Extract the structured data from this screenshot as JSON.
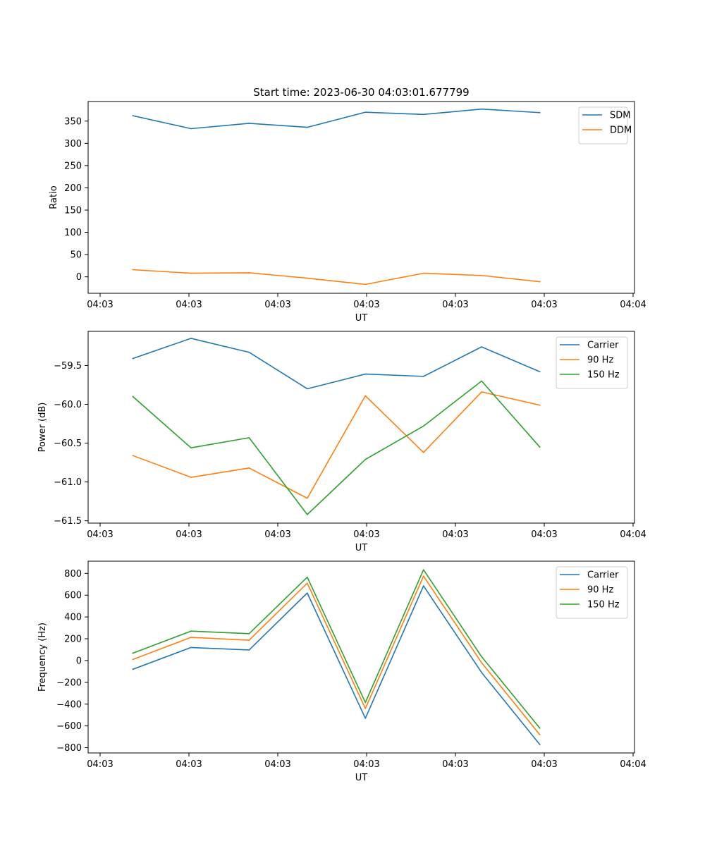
{
  "figure": {
    "title": "Start time: 2023-06-30 04:03:01.677799"
  },
  "chart_data": [
    {
      "type": "line",
      "xlabel": "UT",
      "ylabel": "Ratio",
      "x_tick_labels": [
        "04:03",
        "04:03",
        "04:03",
        "04:03",
        "04:03",
        "04:03",
        "04:04"
      ],
      "x_index": [
        0,
        1,
        2,
        3,
        4,
        5,
        6,
        7
      ],
      "xlim": [
        -0.77,
        8.63
      ],
      "ylim": [
        -37,
        394
      ],
      "y_ticks": [
        0,
        50,
        100,
        150,
        200,
        250,
        300,
        350
      ],
      "y_tick_labels": [
        "0",
        "50",
        "100",
        "150",
        "200",
        "250",
        "300",
        "350"
      ],
      "legend": {
        "placement": "top-right"
      },
      "series": [
        {
          "name": "SDM",
          "color": "#1f77b4",
          "values": [
            362,
            333,
            345,
            336,
            370,
            365,
            377,
            369
          ]
        },
        {
          "name": "DDM",
          "color": "#ff7f0e",
          "values": [
            16,
            8,
            9,
            -3,
            -17,
            8,
            3,
            -11
          ]
        }
      ]
    },
    {
      "type": "line",
      "xlabel": "UT",
      "ylabel": "Power (dB)",
      "x_tick_labels": [
        "04:03",
        "04:03",
        "04:03",
        "04:03",
        "04:03",
        "04:03",
        "04:04"
      ],
      "x_index": [
        0,
        1,
        2,
        3,
        4,
        5,
        6,
        7
      ],
      "xlim": [
        -0.77,
        8.63
      ],
      "ylim": [
        -61.53,
        -59.06
      ],
      "y_ticks": [
        -61.5,
        -61.0,
        -60.5,
        -60.0,
        -59.5
      ],
      "y_tick_labels": [
        "−61.5",
        "−61.0",
        "−60.5",
        "−60.0",
        "−59.5"
      ],
      "legend": {
        "placement": "top-right"
      },
      "series": [
        {
          "name": "Carrier",
          "color": "#1f77b4",
          "values": [
            -59.41,
            -59.15,
            -59.33,
            -59.8,
            -59.61,
            -59.64,
            -59.26,
            -59.58
          ]
        },
        {
          "name": "90 Hz",
          "color": "#ff7f0e",
          "values": [
            -60.66,
            -60.94,
            -60.82,
            -61.21,
            -59.89,
            -60.62,
            -59.84,
            -60.01
          ]
        },
        {
          "name": "150 Hz",
          "color": "#2ca02c",
          "values": [
            -59.9,
            -60.56,
            -60.43,
            -61.42,
            -60.71,
            -60.28,
            -59.7,
            -60.55
          ]
        }
      ]
    },
    {
      "type": "line",
      "xlabel": "UT",
      "ylabel": "Frequency (Hz)",
      "x_tick_labels": [
        "04:03",
        "04:03",
        "04:03",
        "04:03",
        "04:03",
        "04:03",
        "04:04"
      ],
      "x_index": [
        0,
        1,
        2,
        3,
        4,
        5,
        6,
        7
      ],
      "xlim": [
        -0.77,
        8.63
      ],
      "ylim": [
        -848,
        912
      ],
      "y_ticks": [
        -800,
        -600,
        -400,
        -200,
        0,
        200,
        400,
        600,
        800
      ],
      "y_tick_labels": [
        "−800",
        "−600",
        "−400",
        "−200",
        "0",
        "200",
        "400",
        "600",
        "800"
      ],
      "legend": {
        "placement": "top-right"
      },
      "series": [
        {
          "name": "Carrier",
          "color": "#1f77b4",
          "values": [
            -80,
            120,
            97,
            620,
            -530,
            685,
            -110,
            -770
          ]
        },
        {
          "name": "90 Hz",
          "color": "#ff7f0e",
          "values": [
            10,
            213,
            187,
            710,
            -440,
            775,
            -20,
            -680
          ]
        },
        {
          "name": "150 Hz",
          "color": "#2ca02c",
          "values": [
            68,
            270,
            247,
            765,
            -385,
            833,
            35,
            -620
          ]
        }
      ]
    }
  ]
}
